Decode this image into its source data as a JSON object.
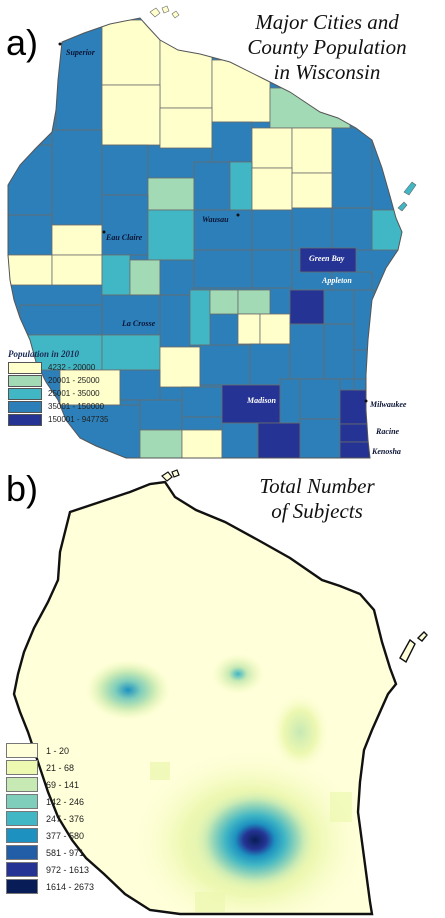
{
  "panel_a": {
    "letter": "a)",
    "title_lines": [
      "Major Cities and",
      "County Population",
      "in Wisconsin"
    ],
    "legend_title": "Population in 2010",
    "legend": [
      {
        "label": "4232 - 20000",
        "color": "#ffffcc"
      },
      {
        "label": "20001 - 25000",
        "color": "#a1dab4"
      },
      {
        "label": "25001 - 35000",
        "color": "#41b6c4"
      },
      {
        "label": "35001 - 150000",
        "color": "#2c7fb8"
      },
      {
        "label": "150001 - 947735",
        "color": "#253494"
      }
    ],
    "cities": [
      "Superior",
      "Eau Claire",
      "Wausau",
      "Green Bay",
      "Appleton",
      "La Crosse",
      "Madison",
      "Milwaukee",
      "Racine",
      "Kenosha"
    ]
  },
  "panel_b": {
    "letter": "b)",
    "title_lines": [
      "Total Number",
      "of Subjects"
    ],
    "legend": [
      {
        "label": "1 - 20",
        "color": "#ffffd9"
      },
      {
        "label": "21 - 68",
        "color": "#edf8b1"
      },
      {
        "label": "69 - 141",
        "color": "#c7e9b4"
      },
      {
        "label": "142 - 246",
        "color": "#7fcdbb"
      },
      {
        "label": "247 - 376",
        "color": "#41b6c4"
      },
      {
        "label": "377 - 580",
        "color": "#1d91c0"
      },
      {
        "label": "581 - 971",
        "color": "#225ea8"
      },
      {
        "label": "972 - 1613",
        "color": "#253494"
      },
      {
        "label": "1614 - 2673",
        "color": "#081d58"
      }
    ]
  }
}
